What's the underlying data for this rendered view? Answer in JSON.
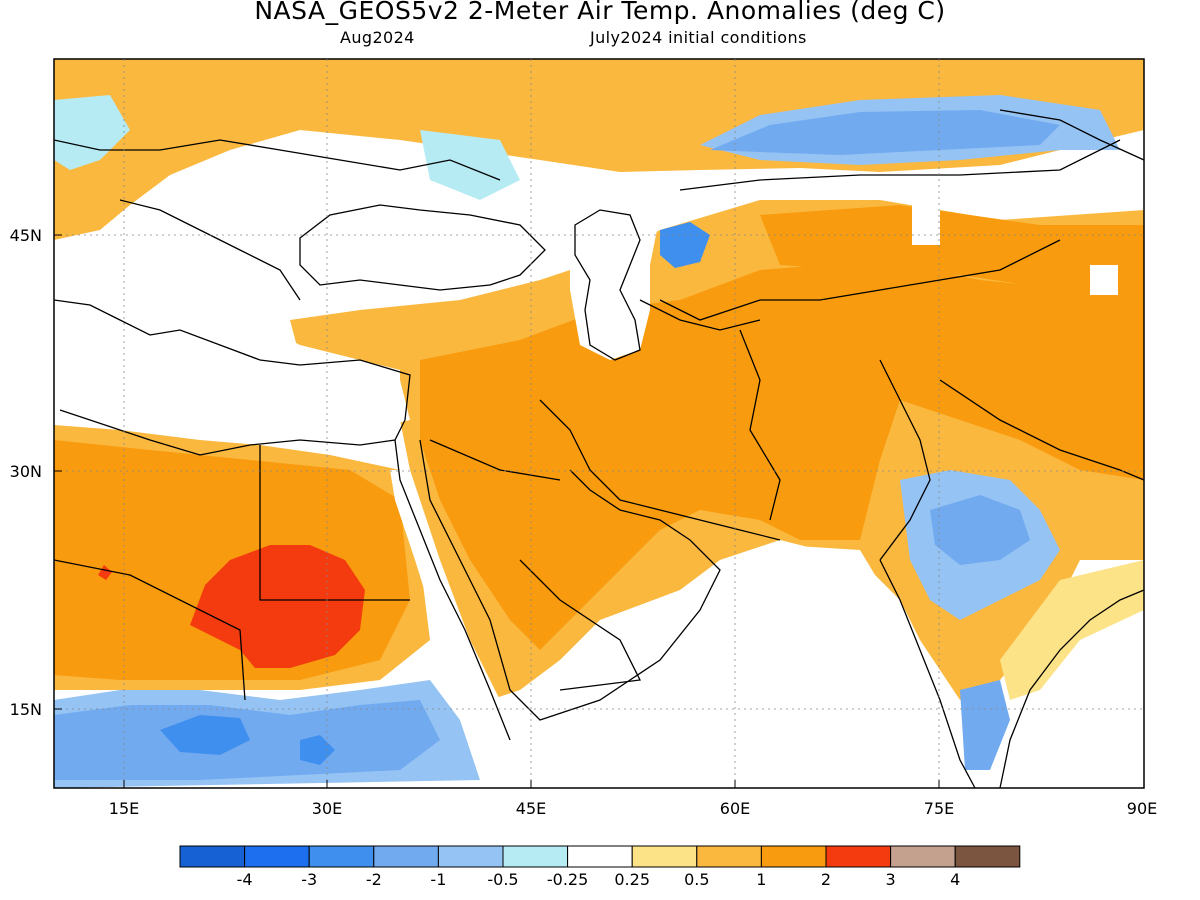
{
  "title": "NASA_GEOS5v2 2-Meter Air Temp. Anomalies (deg C)",
  "subtitle_left": "Aug2024",
  "subtitle_right": "July2024 initial conditions",
  "axes": {
    "x_labels": [
      "15E",
      "30E",
      "45E",
      "60E",
      "75E",
      "90E"
    ],
    "y_labels": [
      "45N",
      "30N",
      "15N"
    ]
  },
  "colorbar": {
    "labels": [
      "-4",
      "-3",
      "-2",
      "-1",
      "-0.5",
      "-0.25",
      "0.25",
      "0.5",
      "1",
      "2",
      "3",
      "4"
    ],
    "colors": [
      "#1662d4",
      "#1e6ff0",
      "#3f8fef",
      "#72aaf0",
      "#94c3f4",
      "#b6ebf4",
      "#ffffff",
      "#fde388",
      "#fbb83f",
      "#f89b0e",
      "#f43b0f",
      "#c4a18e",
      "#7b5540"
    ]
  },
  "anomaly_colors": {
    "strong_cool": "#3f8fef",
    "cool": "#72aaf0",
    "light_cool": "#94c3f4",
    "slight_cool": "#b6ebf4",
    "neutral": "#ffffff",
    "slight_warm": "#fde388",
    "warm": "#fbb83f",
    "warmer": "#f89b0e",
    "hot": "#f43b0f"
  }
}
